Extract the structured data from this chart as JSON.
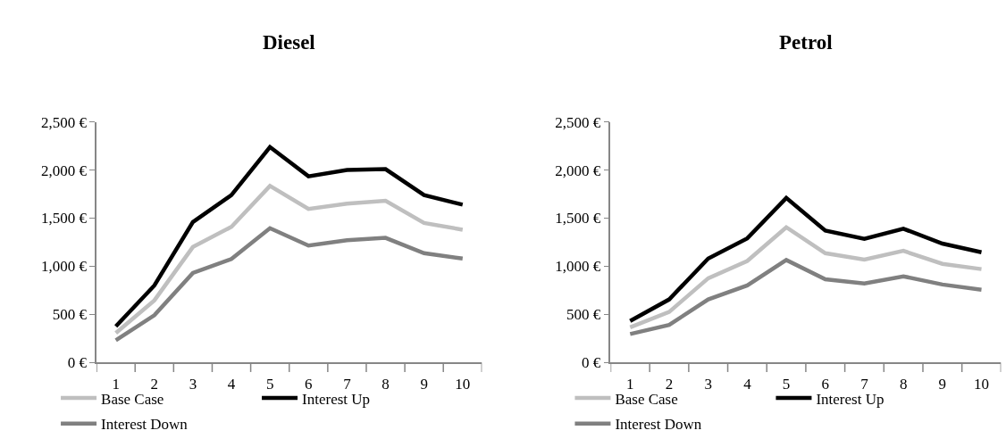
{
  "chart_data": [
    {
      "type": "line",
      "title": "Diesel",
      "categories": [
        "1",
        "2",
        "3",
        "4",
        "5",
        "6",
        "7",
        "8",
        "9",
        "10"
      ],
      "ylim": [
        0,
        2500
      ],
      "yticks": [
        {
          "value": 0,
          "label": "0 €"
        },
        {
          "value": 500,
          "label": "500 €"
        },
        {
          "value": 1000,
          "label": "1,000 €"
        },
        {
          "value": 1500,
          "label": "1,500 €"
        },
        {
          "value": 2000,
          "label": "2,000 €"
        },
        {
          "value": 2500,
          "label": "2,500 €"
        }
      ],
      "grid": false,
      "legend": "bottom",
      "marker": "none",
      "line_style": "solid",
      "series": [
        {
          "name": "Base Case",
          "color": "#bfbfbf",
          "values": [
            305,
            645,
            1200,
            1410,
            1835,
            1595,
            1650,
            1680,
            1450,
            1380
          ]
        },
        {
          "name": "Interest Up",
          "color": "#000000",
          "values": [
            375,
            800,
            1460,
            1740,
            2240,
            1935,
            2000,
            2010,
            1740,
            1640
          ]
        },
        {
          "name": "Interest Down",
          "color": "#808080",
          "values": [
            230,
            490,
            930,
            1075,
            1395,
            1215,
            1270,
            1295,
            1135,
            1080
          ]
        }
      ]
    },
    {
      "type": "line",
      "title": "Petrol",
      "categories": [
        "1",
        "2",
        "3",
        "4",
        "5",
        "6",
        "7",
        "8",
        "9",
        "10"
      ],
      "ylim": [
        0,
        2500
      ],
      "yticks": [
        {
          "value": 0,
          "label": "0 €"
        },
        {
          "value": 500,
          "label": "500 €"
        },
        {
          "value": 1000,
          "label": "1,000 €"
        },
        {
          "value": 1500,
          "label": "1,500 €"
        },
        {
          "value": 2000,
          "label": "2,000 €"
        },
        {
          "value": 2500,
          "label": "2,500 €"
        }
      ],
      "grid": false,
      "legend": "bottom",
      "marker": "none",
      "line_style": "solid",
      "series": [
        {
          "name": "Base Case",
          "color": "#bfbfbf",
          "values": [
            365,
            525,
            875,
            1055,
            1405,
            1135,
            1070,
            1160,
            1025,
            970
          ]
        },
        {
          "name": "Interest Up",
          "color": "#000000",
          "values": [
            430,
            655,
            1080,
            1290,
            1710,
            1370,
            1285,
            1390,
            1235,
            1145
          ]
        },
        {
          "name": "Interest Down",
          "color": "#808080",
          "values": [
            295,
            390,
            655,
            800,
            1065,
            865,
            820,
            895,
            810,
            755
          ]
        }
      ]
    }
  ]
}
